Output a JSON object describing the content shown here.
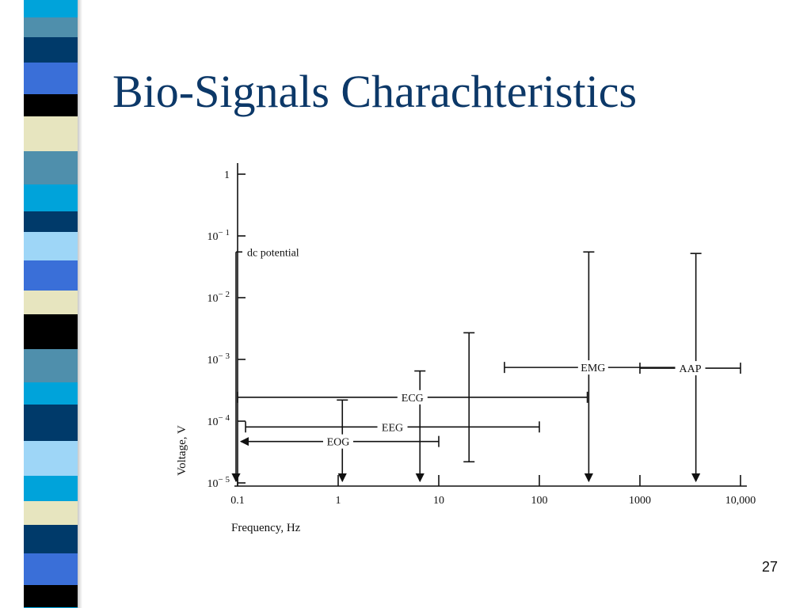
{
  "slide": {
    "title": "Bio-Signals Charachteristics",
    "page_number": "27",
    "title_color": "#0c3868"
  },
  "chart_data": {
    "type": "range",
    "xlabel": "Frequency, Hz",
    "ylabel": "Voltage, V",
    "x_scale": "log",
    "y_scale": "log",
    "xlim": [
      0.1,
      10000
    ],
    "ylim": [
      1e-05,
      1
    ],
    "grid": false,
    "x_ticks": [
      {
        "value": 0.1,
        "label": "0.1"
      },
      {
        "value": 1,
        "label": "1"
      },
      {
        "value": 10,
        "label": "10"
      },
      {
        "value": 100,
        "label": "100"
      },
      {
        "value": 1000,
        "label": "1000"
      },
      {
        "value": 10000,
        "label": "10,000"
      }
    ],
    "y_ticks": [
      {
        "value": 1,
        "base": "1",
        "exp": ""
      },
      {
        "value": 0.1,
        "base": "10",
        "exp": "− 1"
      },
      {
        "value": 0.01,
        "base": "10",
        "exp": "− 2"
      },
      {
        "value": 0.001,
        "base": "10",
        "exp": "− 3"
      },
      {
        "value": 0.0001,
        "base": "10",
        "exp": "− 4"
      },
      {
        "value": 1e-05,
        "base": "10",
        "exp": "− 5"
      }
    ],
    "signals": [
      {
        "name": "EOG",
        "freq": [
          0.1,
          10
        ],
        "freq_low_open": true,
        "volt": [
          1e-05,
          0.00022
        ],
        "volt_low_open": true,
        "freq_marker": 1.1
      },
      {
        "name": "EEG",
        "freq": [
          0.12,
          100
        ],
        "volt": [
          1e-05,
          0.00065
        ],
        "volt_low_open": true,
        "freq_marker": 6.5
      },
      {
        "name": "ECG",
        "freq": [
          0.1,
          300
        ],
        "volt": [
          2.2e-05,
          0.0027
        ],
        "freq_marker": 20
      },
      {
        "name": "EMG",
        "freq": [
          45,
          2600
        ],
        "volt": [
          1e-05,
          0.055
        ],
        "volt_low_open": true,
        "freq_marker": 310
      },
      {
        "name": "AAP",
        "freq": [
          1000,
          10000
        ],
        "volt": [
          1e-05,
          0.052
        ],
        "volt_low_open": true,
        "freq_marker": 3600
      }
    ],
    "annotations": [
      {
        "text": "dc potential",
        "freq": 0.1,
        "volt": [
          1e-05,
          0.055
        ],
        "volt_low_open": true
      }
    ]
  }
}
